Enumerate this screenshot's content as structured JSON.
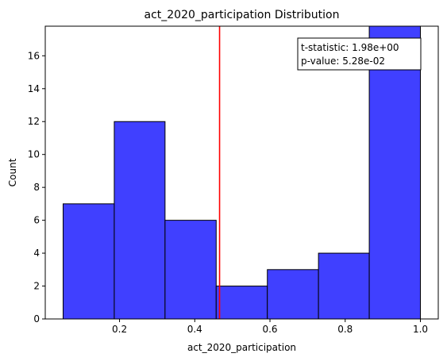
{
  "chart_data": {
    "type": "bar",
    "title": "act_2020_participation Distribution",
    "xlabel": "act_2020_participation",
    "ylabel": "Count",
    "bins": [
      {
        "start": 0.05,
        "end": 0.186,
        "count": 7
      },
      {
        "start": 0.186,
        "end": 0.321,
        "count": 12
      },
      {
        "start": 0.321,
        "end": 0.457,
        "count": 6
      },
      {
        "start": 0.457,
        "end": 0.593,
        "count": 2
      },
      {
        "start": 0.593,
        "end": 0.729,
        "count": 3
      },
      {
        "start": 0.729,
        "end": 0.864,
        "count": 4
      },
      {
        "start": 0.864,
        "end": 1.0,
        "count": 18
      }
    ],
    "xlim": [
      0.0025,
      1.0475
    ],
    "ylim": [
      0,
      17.8
    ],
    "xticks": [
      {
        "value": 0.2,
        "label": "0.2"
      },
      {
        "value": 0.4,
        "label": "0.4"
      },
      {
        "value": 0.6,
        "label": "0.6"
      },
      {
        "value": 0.8,
        "label": "0.8"
      },
      {
        "value": 1.0,
        "label": "1.0"
      }
    ],
    "yticks": [
      {
        "value": 0,
        "label": "0"
      },
      {
        "value": 2,
        "label": "2"
      },
      {
        "value": 4,
        "label": "4"
      },
      {
        "value": 6,
        "label": "6"
      },
      {
        "value": 8,
        "label": "8"
      },
      {
        "value": 10,
        "label": "10"
      },
      {
        "value": 12,
        "label": "12"
      },
      {
        "value": 14,
        "label": "14"
      },
      {
        "value": 16,
        "label": "16"
      }
    ],
    "mean_line": 0.466,
    "annotation": {
      "line1": "t-statistic:  1.98e+00",
      "line2": "p-value:  5.28e-02"
    },
    "bar_color": "#4040ff",
    "bar_edge_color": "#000000",
    "mean_line_color": "#ff0000",
    "grid": false,
    "annotation_position": "top-right"
  }
}
